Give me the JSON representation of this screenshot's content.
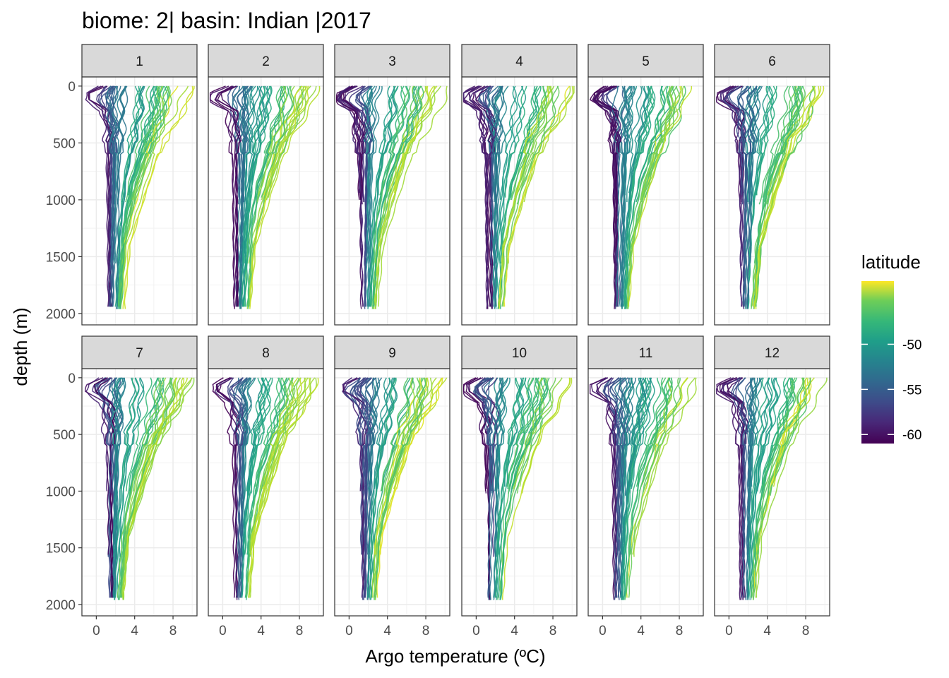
{
  "chart_data": {
    "type": "line",
    "title": "biome: 2| basin: Indian |2017",
    "xlabel": "Argo temperature (ºC)",
    "ylabel": "depth (m)",
    "xlim": [
      -1.5,
      10.5
    ],
    "ylim": [
      2100,
      -80
    ],
    "x_ticks": [
      0,
      4,
      8
    ],
    "x_tick_labels": [
      "0",
      "4",
      "8"
    ],
    "y_ticks": [
      0,
      500,
      1000,
      1500,
      2000
    ],
    "y_tick_labels": [
      "0",
      "500",
      "1000",
      "1500",
      "2000"
    ],
    "grid": true,
    "facet_by": "month",
    "panels": [
      "1",
      "2",
      "3",
      "4",
      "5",
      "6",
      "7",
      "8",
      "9",
      "10",
      "11",
      "12"
    ],
    "legend": {
      "title": "latitude",
      "position": "right",
      "colormap": "viridis",
      "range": [
        -61,
        -43
      ],
      "ticks": [
        -50,
        -55,
        -60
      ],
      "tick_labels": [
        "-50",
        "-55",
        "-60"
      ]
    },
    "series_note_groups": [
      {
        "latitude": -60,
        "profile": [
          [
            0.8,
            0
          ],
          [
            -0.6,
            60
          ],
          [
            -0.8,
            120
          ],
          [
            0.0,
            170
          ],
          [
            0.9,
            220
          ],
          [
            1.2,
            400
          ],
          [
            1.3,
            1000
          ],
          [
            1.4,
            2000
          ]
        ]
      },
      {
        "latitude": -57,
        "profile": [
          [
            1.6,
            0
          ],
          [
            0.6,
            80
          ],
          [
            0.5,
            130
          ],
          [
            1.2,
            200
          ],
          [
            1.7,
            350
          ],
          [
            1.6,
            1000
          ],
          [
            1.5,
            1960
          ]
        ]
      },
      {
        "latitude": -55,
        "profile": [
          [
            2.2,
            0
          ],
          [
            1.6,
            90
          ],
          [
            1.8,
            200
          ],
          [
            2.0,
            400
          ],
          [
            1.9,
            1000
          ],
          [
            1.7,
            1960
          ]
        ]
      },
      {
        "latitude": -53,
        "profile": [
          [
            2.8,
            0
          ],
          [
            2.5,
            120
          ],
          [
            2.4,
            300
          ],
          [
            2.2,
            800
          ],
          [
            1.9,
            1960
          ]
        ]
      },
      {
        "latitude": -51,
        "profile": [
          [
            4.5,
            0
          ],
          [
            4.4,
            200
          ],
          [
            3.8,
            450
          ],
          [
            3.0,
            800
          ],
          [
            2.4,
            1300
          ],
          [
            2.1,
            1960
          ]
        ]
      },
      {
        "latitude": -49,
        "profile": [
          [
            6.5,
            0
          ],
          [
            6.3,
            200
          ],
          [
            5.0,
            550
          ],
          [
            3.8,
            850
          ],
          [
            2.9,
            1250
          ],
          [
            2.4,
            1960
          ]
        ]
      },
      {
        "latitude": -47,
        "profile": [
          [
            7.5,
            0
          ],
          [
            7.2,
            250
          ],
          [
            5.8,
            550
          ],
          [
            4.2,
            950
          ],
          [
            3.0,
            1400
          ],
          [
            2.5,
            1960
          ]
        ]
      },
      {
        "latitude": -45,
        "profile": [
          [
            9.0,
            0
          ],
          [
            8.2,
            200
          ],
          [
            6.2,
            500
          ],
          [
            4.5,
            1000
          ],
          [
            3.2,
            1400
          ],
          [
            2.7,
            1900
          ]
        ]
      }
    ]
  }
}
